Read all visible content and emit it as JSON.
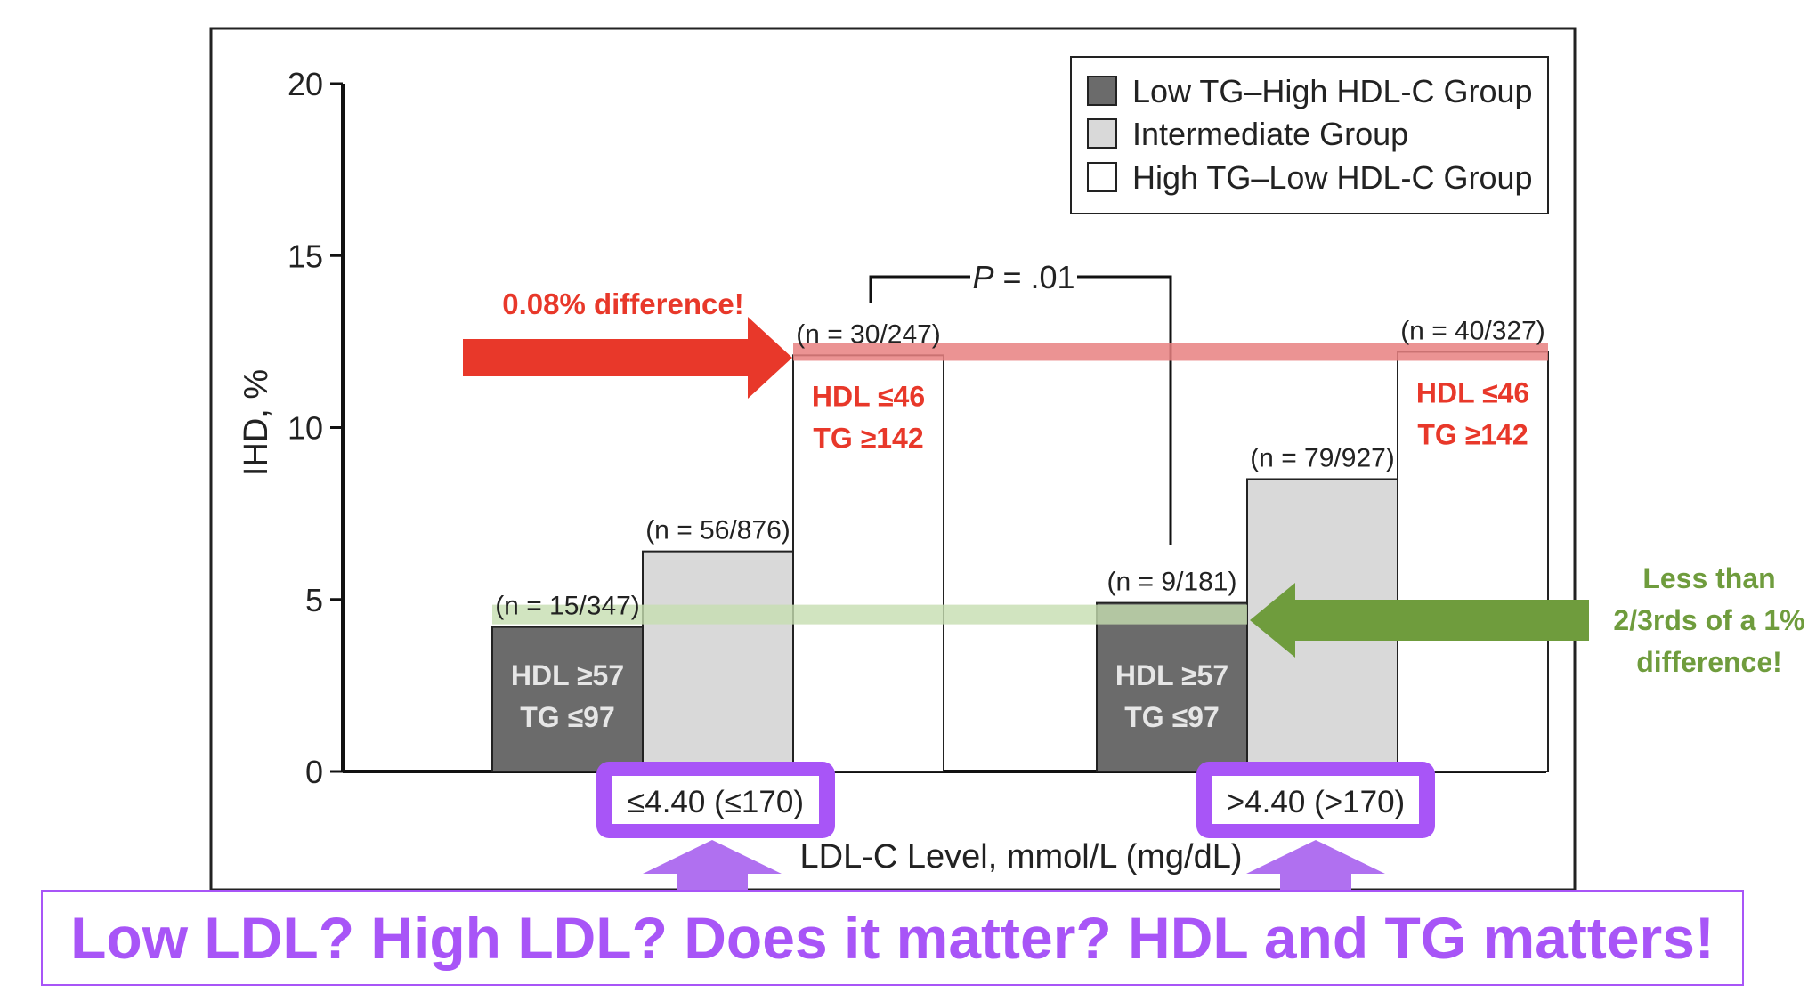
{
  "chart_data": {
    "type": "bar",
    "ylabel": "IHD, %",
    "xlabel": "LDL-C Level, mmol/L (mg/dL)",
    "ylim": [
      0,
      20
    ],
    "yticks": [
      0,
      5,
      10,
      15,
      20
    ],
    "categories": [
      "≤4.40 (≤170)",
      ">4.40 (>170)"
    ],
    "series": [
      {
        "name": "Low TG–High HDL-C Group",
        "color": "#6b6b6b",
        "values": [
          4.2,
          4.9
        ],
        "n_labels": [
          "(n = 15/347)",
          "(n = 9/181)"
        ]
      },
      {
        "name": "Intermediate Group",
        "color": "#d9d9d9",
        "values": [
          6.4,
          8.5
        ],
        "n_labels": [
          "(n = 56/876)",
          "(n = 79/927)"
        ]
      },
      {
        "name": "High TG–Low HDL-C Group",
        "color": "#ffffff",
        "values": [
          12.1,
          12.2
        ],
        "n_labels": [
          "(n = 30/247)",
          "(n = 40/327)"
        ]
      }
    ],
    "bar_annotations": {
      "low_tg_high_hdl": [
        "HDL ≥57",
        "TG ≤97"
      ],
      "high_tg_low_hdl": [
        "HDL ≤46",
        "TG ≥142"
      ]
    },
    "p_value": {
      "prefix": "P",
      "text": " = .01"
    },
    "legend_position": "top-right",
    "grid": false
  },
  "annotations": {
    "red_callout": "0.08% difference!",
    "green_callout": [
      "Less than",
      "2/3rds of a 1%",
      "difference!"
    ]
  },
  "banner": "Low LDL? High LDL? Does it matter? HDL and TG matters!",
  "colors": {
    "red": "#e8382a",
    "green": "#6f9c3d",
    "purple": "#a855f7",
    "red_band": "#e88080",
    "green_band": "#c5ddb0",
    "purple_arrow": "#b070f0"
  }
}
